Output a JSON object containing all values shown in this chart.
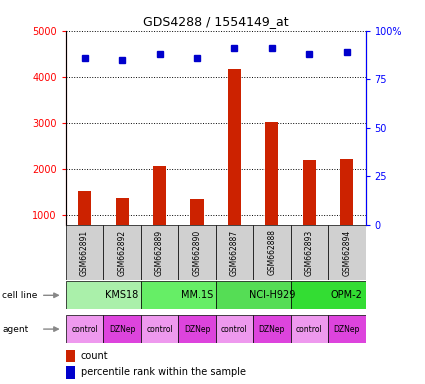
{
  "title": "GDS4288 / 1554149_at",
  "samples": [
    "GSM662891",
    "GSM662892",
    "GSM662889",
    "GSM662890",
    "GSM662887",
    "GSM662888",
    "GSM662893",
    "GSM662894"
  ],
  "counts": [
    1530,
    1380,
    2080,
    1350,
    4180,
    3020,
    2210,
    2220
  ],
  "percentile_ranks_pct": [
    86,
    85,
    88,
    86,
    91,
    91,
    88,
    89
  ],
  "cell_lines": [
    {
      "label": "KMS18",
      "start": 0,
      "end": 2,
      "color": "#aaf0aa"
    },
    {
      "label": "MM.1S",
      "start": 2,
      "end": 4,
      "color": "#66ee66"
    },
    {
      "label": "NCI-H929",
      "start": 4,
      "end": 6,
      "color": "#55dd55"
    },
    {
      "label": "OPM-2",
      "start": 6,
      "end": 8,
      "color": "#33dd33"
    }
  ],
  "agents": [
    "control",
    "DZNep",
    "control",
    "DZNep",
    "control",
    "DZNep",
    "control",
    "DZNep"
  ],
  "agent_color_control": "#ee99ee",
  "agent_color_dznep": "#dd44dd",
  "sample_box_color": "#d0d0d0",
  "bar_color": "#cc2200",
  "dot_color": "#0000cc",
  "ylim_left": [
    800,
    5000
  ],
  "ylim_right": [
    0,
    100
  ],
  "yticks_left": [
    1000,
    2000,
    3000,
    4000,
    5000
  ],
  "ytick_left_labels": [
    "1000",
    "2000",
    "3000",
    "4000",
    "5000"
  ],
  "yticks_right": [
    0,
    25,
    50,
    75,
    100
  ],
  "ytick_right_labels": [
    "0",
    "25",
    "50",
    "75",
    "100%"
  ],
  "legend_count": "count",
  "legend_pct": "percentile rank within the sample",
  "background_color": "#ffffff"
}
